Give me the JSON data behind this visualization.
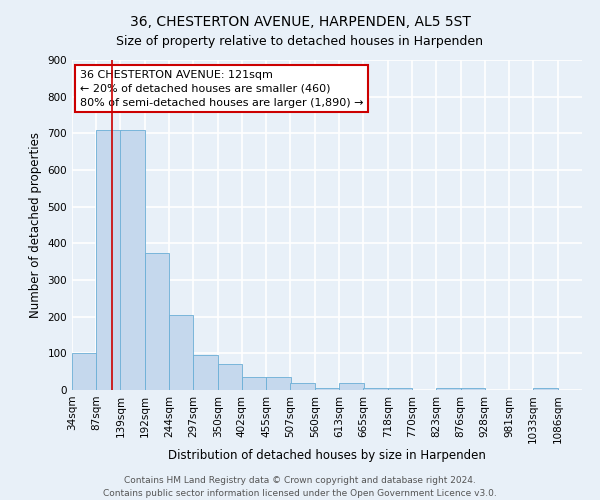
{
  "title": "36, CHESTERTON AVENUE, HARPENDEN, AL5 5ST",
  "subtitle": "Size of property relative to detached houses in Harpenden",
  "xlabel": "Distribution of detached houses by size in Harpenden",
  "ylabel": "Number of detached properties",
  "bin_labels": [
    "34sqm",
    "87sqm",
    "139sqm",
    "192sqm",
    "244sqm",
    "297sqm",
    "350sqm",
    "402sqm",
    "455sqm",
    "507sqm",
    "560sqm",
    "613sqm",
    "665sqm",
    "718sqm",
    "770sqm",
    "823sqm",
    "876sqm",
    "928sqm",
    "981sqm",
    "1033sqm",
    "1086sqm"
  ],
  "bin_edges": [
    34,
    87,
    139,
    192,
    244,
    297,
    350,
    402,
    455,
    507,
    560,
    613,
    665,
    718,
    770,
    823,
    876,
    928,
    981,
    1033,
    1086
  ],
  "bar_heights": [
    100,
    710,
    710,
    375,
    205,
    95,
    70,
    35,
    35,
    20,
    5,
    20,
    5,
    5,
    0,
    5,
    5,
    0,
    0,
    5,
    0
  ],
  "bar_color": "#c5d8ed",
  "bar_edge_color": "#6aaed6",
  "property_line_x": 121,
  "property_line_color": "#cc0000",
  "annotation_line1": "36 CHESTERTON AVENUE: 121sqm",
  "annotation_line2": "← 20% of detached houses are smaller (460)",
  "annotation_line3": "80% of semi-detached houses are larger (1,890) →",
  "annotation_box_color": "#ffffff",
  "annotation_box_edge_color": "#cc0000",
  "ylim": [
    0,
    900
  ],
  "yticks": [
    0,
    100,
    200,
    300,
    400,
    500,
    600,
    700,
    800,
    900
  ],
  "footer_line1": "Contains HM Land Registry data © Crown copyright and database right 2024.",
  "footer_line2": "Contains public sector information licensed under the Open Government Licence v3.0.",
  "background_color": "#e8f0f8",
  "grid_color": "#ffffff",
  "title_fontsize": 10,
  "subtitle_fontsize": 9,
  "axis_label_fontsize": 8.5,
  "tick_fontsize": 7.5,
  "annotation_fontsize": 8,
  "footer_fontsize": 6.5
}
